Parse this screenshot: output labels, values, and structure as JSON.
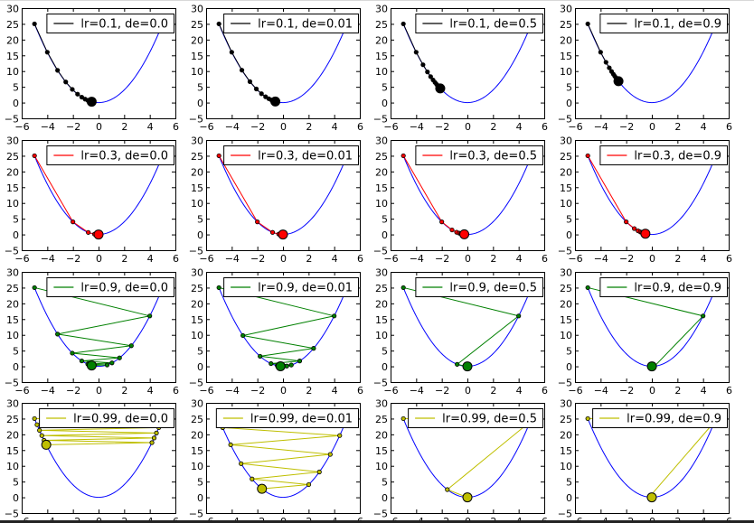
{
  "chart_data": {
    "type": "line",
    "title": "",
    "grid": false,
    "function": "x^2",
    "curve_color": "#0000ff",
    "xlim": [
      -6,
      6
    ],
    "ylim": [
      -5,
      30
    ],
    "xticks": [
      "−6",
      "−4",
      "−2",
      "0",
      "2",
      "4",
      "6"
    ],
    "yticks": [
      "−5",
      "0",
      "5",
      "10",
      "15",
      "20",
      "25",
      "30"
    ],
    "xtick_values": [
      -6,
      -4,
      -2,
      0,
      2,
      4,
      6
    ],
    "ytick_values": [
      -5,
      0,
      5,
      10,
      15,
      20,
      25,
      30
    ],
    "legend_position": "upper right",
    "start_x": -5,
    "steps": 10,
    "rows": [
      {
        "lr": 0.1,
        "color": "#000000",
        "panels": [
          {
            "de": 0.0,
            "legend": "lr=0.1, de=0.0"
          },
          {
            "de": 0.01,
            "legend": "lr=0.1, de=0.01"
          },
          {
            "de": 0.5,
            "legend": "lr=0.1, de=0.5"
          },
          {
            "de": 0.9,
            "legend": "lr=0.1, de=0.9"
          }
        ]
      },
      {
        "lr": 0.3,
        "color": "#ff0000",
        "panels": [
          {
            "de": 0.0,
            "legend": "lr=0.3, de=0.0"
          },
          {
            "de": 0.01,
            "legend": "lr=0.3, de=0.01"
          },
          {
            "de": 0.5,
            "legend": "lr=0.3, de=0.5"
          },
          {
            "de": 0.9,
            "legend": "lr=0.3, de=0.9"
          }
        ]
      },
      {
        "lr": 0.9,
        "color": "#008000",
        "panels": [
          {
            "de": 0.0,
            "legend": "lr=0.9, de=0.0"
          },
          {
            "de": 0.01,
            "legend": "lr=0.9, de=0.01"
          },
          {
            "de": 0.5,
            "legend": "lr=0.9, de=0.5"
          },
          {
            "de": 0.9,
            "legend": "lr=0.9, de=0.9"
          }
        ]
      },
      {
        "lr": 0.99,
        "color": "#bfbf00",
        "panels": [
          {
            "de": 0.0,
            "legend": "lr=0.99, de=0.0"
          },
          {
            "de": 0.01,
            "legend": "lr=0.99, de=0.01"
          },
          {
            "de": 0.5,
            "legend": "lr=0.99, de=0.5"
          },
          {
            "de": 0.9,
            "legend": "lr=0.99, de=0.9"
          }
        ]
      }
    ]
  }
}
